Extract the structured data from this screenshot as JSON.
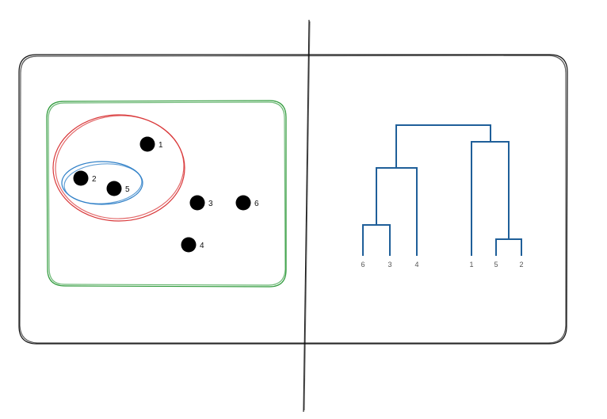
{
  "colors": {
    "frame": "#111111",
    "outer_cluster": "#2e9a3a",
    "middle_cluster": "#d9383a",
    "inner_cluster": "#2e7fc7",
    "dendrogram": "#1f5f99",
    "point": "#000000"
  },
  "points": [
    {
      "id": "p1",
      "label": "1"
    },
    {
      "id": "p2",
      "label": "2"
    },
    {
      "id": "p5",
      "label": "5"
    },
    {
      "id": "p3",
      "label": "3"
    },
    {
      "id": "p6",
      "label": "6"
    },
    {
      "id": "p4",
      "label": "4"
    }
  ],
  "dendrogram": {
    "leaves": [
      "6",
      "3",
      "4",
      "1",
      "5",
      "2"
    ]
  }
}
